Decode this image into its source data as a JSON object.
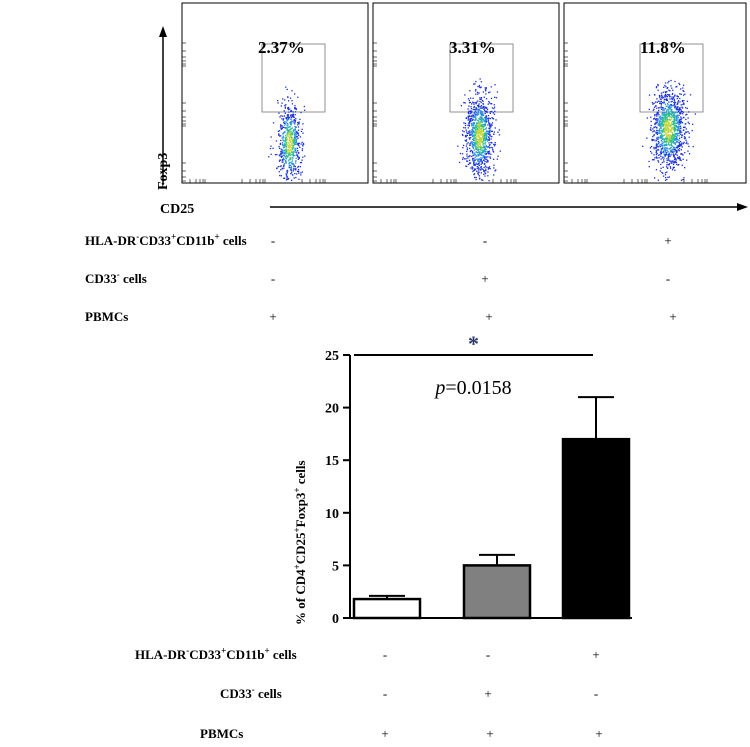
{
  "flow_panels": [
    {
      "percent": "2.37%",
      "density": 1.0,
      "spread": 1.0
    },
    {
      "percent": "3.31%",
      "density": 1.6,
      "spread": 1.15
    },
    {
      "percent": "11.8%",
      "density": 1.8,
      "spread": 1.45
    }
  ],
  "flow_axes": {
    "y_label": "Foxp3",
    "x_label": "CD25"
  },
  "top_conditions": {
    "rows": [
      {
        "label_main": "HLA-DR",
        "sup1": "-",
        "mid1": "CD33",
        "sup2": "+",
        "mid2": "CD11b",
        "sup3": "+",
        "tail": " cells",
        "marks": [
          "-",
          "-",
          "+"
        ]
      },
      {
        "label_main": "CD33",
        "sup1": "-",
        "mid1": "",
        "sup2": "",
        "mid2": "",
        "sup3": "",
        "tail": " cells",
        "marks": [
          "-",
          "+",
          "-"
        ]
      },
      {
        "label_main": "PBMCs",
        "sup1": "",
        "mid1": "",
        "sup2": "",
        "mid2": "",
        "sup3": "",
        "tail": "",
        "marks": [
          "+",
          "+",
          "+"
        ]
      }
    ]
  },
  "chart_data": {
    "type": "bar",
    "categories": [
      "PBMCs",
      "PBMCs + CD33- cells",
      "PBMCs + HLA-DR-CD33+CD11b+ cells"
    ],
    "values": [
      1.8,
      5.0,
      17.0
    ],
    "errors": [
      0.3,
      1.0,
      4.0
    ],
    "bar_colors": [
      "#ffffff",
      "#808080",
      "#000000"
    ],
    "ylim": [
      0,
      25
    ],
    "yticks": [
      "0",
      "5",
      "10",
      "15",
      "20",
      "25"
    ],
    "ytick_values": [
      0,
      5,
      10,
      15,
      20,
      25
    ],
    "ylabel": {
      "p1": "% of CD4",
      "s1": "+",
      "p2": "CD25",
      "s2": "+",
      "p3": "Foxp3",
      "s3": "+",
      "p4": " cells"
    },
    "significance": {
      "star": "*",
      "p_italic": "p",
      "p_rest": "=0.0158",
      "from": 0,
      "to": 2
    }
  },
  "bottom_conditions": {
    "rows": [
      {
        "label_main": "HLA-DR",
        "sup1": "-",
        "mid1": "CD33",
        "sup2": "+",
        "mid2": "CD11b",
        "sup3": "+",
        "tail": " cells",
        "marks": [
          "-",
          "-",
          "+"
        ]
      },
      {
        "label_main": "CD33",
        "sup1": "-",
        "mid1": "",
        "sup2": "",
        "mid2": "",
        "sup3": "",
        "tail": " cells",
        "marks": [
          "-",
          "+",
          "-"
        ]
      },
      {
        "label_main": "PBMCs",
        "sup1": "",
        "mid1": "",
        "sup2": "",
        "mid2": "",
        "sup3": "",
        "tail": "",
        "marks": [
          "+",
          "+",
          "+"
        ]
      }
    ]
  },
  "colors": {
    "star": "#2b3a67",
    "axis": "#000000"
  }
}
